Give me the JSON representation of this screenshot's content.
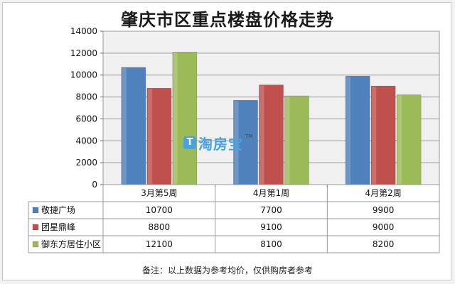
{
  "chart_data": {
    "type": "bar",
    "title": "肇庆市区重点楼盘价格走势",
    "categories": [
      "3月第5周",
      "4月第1周",
      "4月第2周"
    ],
    "series": [
      {
        "name": "敬捷广场",
        "color": "#4f81bd",
        "values": [
          10700,
          7700,
          9900
        ]
      },
      {
        "name": "团星鼎峰",
        "color": "#c0504d",
        "values": [
          8800,
          9100,
          9000
        ]
      },
      {
        "name": "御东方居住小区",
        "color": "#9bbb59",
        "values": [
          12100,
          8100,
          8200
        ]
      }
    ],
    "ylim": [
      0,
      14000
    ],
    "yticks": [
      0,
      2000,
      4000,
      6000,
      8000,
      10000,
      12000,
      14000
    ],
    "grid": true,
    "legend": "data-table",
    "plot_background": "#f0f0f0"
  },
  "watermark": {
    "logo": "T",
    "text": "淘房宝",
    "tm": "TM"
  },
  "footnote": "备注：以上数据为参考均价，仅供购房者参考"
}
